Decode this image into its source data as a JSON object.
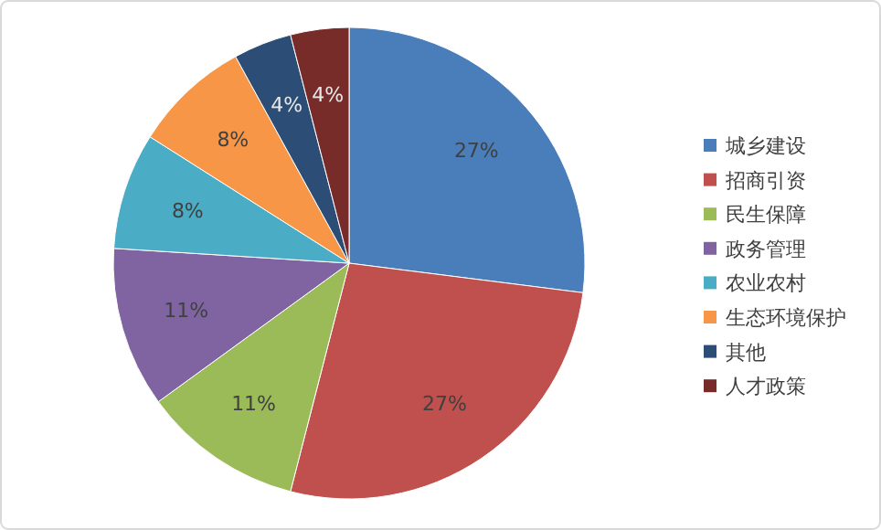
{
  "chart_data": {
    "type": "pie",
    "categories": [
      "城乡建设",
      "招商引资",
      "民生保障",
      "政务管理",
      "农业农村",
      "生态环境保护",
      "其他",
      "人才政策"
    ],
    "values": [
      27,
      27,
      11,
      11,
      8,
      8,
      4,
      4
    ],
    "colors": [
      "#4a7ebb",
      "#c0504d",
      "#9bbb59",
      "#8064a2",
      "#4bacc6",
      "#f79646",
      "#2c4d75",
      "#772c2a"
    ],
    "value_labels": [
      "27%",
      "27%",
      "11%",
      "11%",
      "8%",
      "8%",
      "4%",
      "4%"
    ],
    "legend": "right"
  }
}
